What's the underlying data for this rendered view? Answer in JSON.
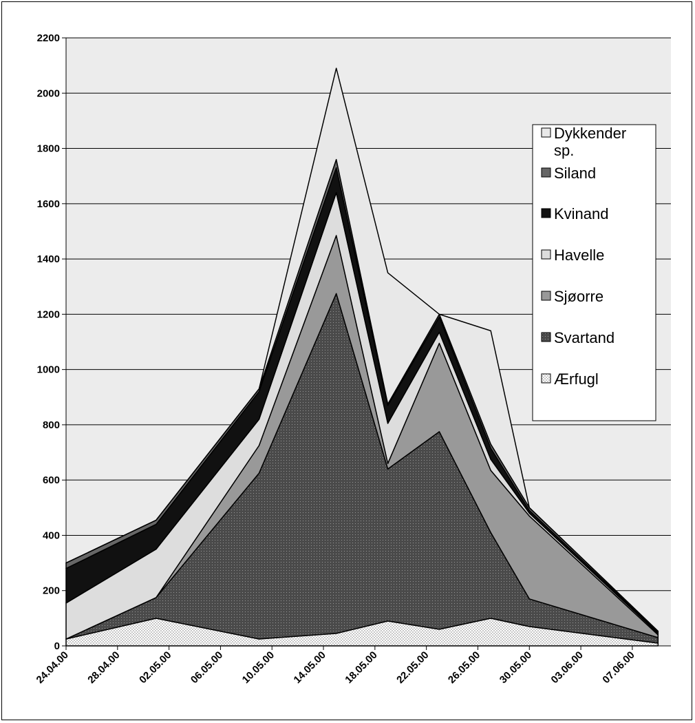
{
  "chart_data": {
    "type": "area",
    "stacked": true,
    "x": [
      "24.04.00",
      "01.05.00",
      "09.05.00",
      "15.05.00",
      "19.05.00",
      "23.05.00",
      "27.05.00",
      "30.05.00",
      "09.06.00"
    ],
    "x_ticks": [
      "24.04.00",
      "28.04.00",
      "02.05.00",
      "06.05.00",
      "10.05.00",
      "14.05.00",
      "18.05.00",
      "22.05.00",
      "26.05.00",
      "30.05.00",
      "03.06.00",
      "07.06.00"
    ],
    "ylim": [
      0,
      2200
    ],
    "y_ticks": [
      0,
      200,
      400,
      600,
      800,
      1000,
      1200,
      1400,
      1600,
      1800,
      2000,
      2200
    ],
    "grid": true,
    "legend_position": "right",
    "series": [
      {
        "name": "Ærfugl",
        "values": [
          25,
          100,
          25,
          45,
          90,
          60,
          100,
          70,
          10
        ],
        "pattern": "checker"
      },
      {
        "name": "Svartand",
        "values": [
          0,
          75,
          600,
          1230,
          550,
          715,
          310,
          100,
          20
        ],
        "pattern": "dots"
      },
      {
        "name": "Sjøorre",
        "values": [
          0,
          0,
          100,
          210,
          20,
          320,
          225,
          300,
          10
        ],
        "color": "#999999"
      },
      {
        "name": "Havelle",
        "values": [
          130,
          175,
          95,
          155,
          145,
          40,
          40,
          10,
          5
        ],
        "color": "#dddddd"
      },
      {
        "name": "Kvinand",
        "values": [
          125,
          90,
          100,
          90,
          65,
          55,
          40,
          10,
          5
        ],
        "color": "#111111"
      },
      {
        "name": "Siland",
        "values": [
          20,
          15,
          10,
          30,
          5,
          10,
          15,
          10,
          3
        ],
        "color": "#666666"
      },
      {
        "name": "Dykkender sp.",
        "values": [
          0,
          0,
          0,
          330,
          475,
          0,
          410,
          0,
          0
        ],
        "color": "#e8e8e8"
      }
    ]
  }
}
